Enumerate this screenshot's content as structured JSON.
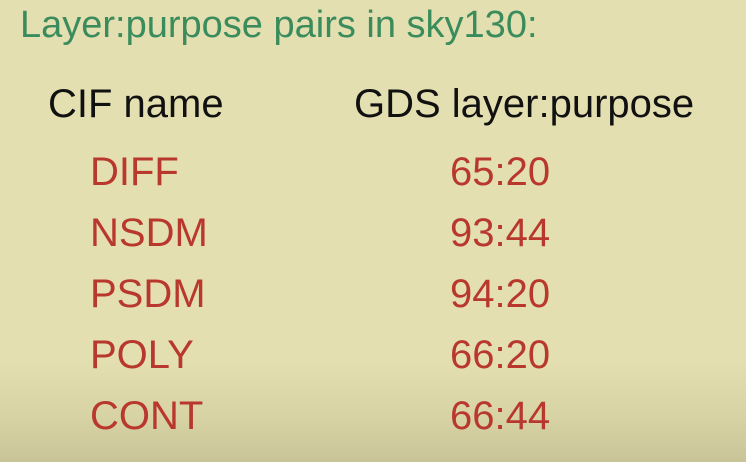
{
  "slide": {
    "title": "Layer:purpose pairs in sky130:",
    "headers": {
      "cif": "CIF name",
      "gds": "GDS layer:purpose"
    },
    "rows": [
      {
        "name": "DIFF",
        "value": "65:20"
      },
      {
        "name": "NSDM",
        "value": "93:44"
      },
      {
        "name": "PSDM",
        "value": "94:20"
      },
      {
        "name": "POLY",
        "value": "66:20"
      },
      {
        "name": "CONT",
        "value": "66:44"
      }
    ],
    "colors": {
      "title": "#3a8c5c",
      "header": "#111111",
      "row": "#b8382e",
      "background": "#e4dfb0"
    }
  }
}
